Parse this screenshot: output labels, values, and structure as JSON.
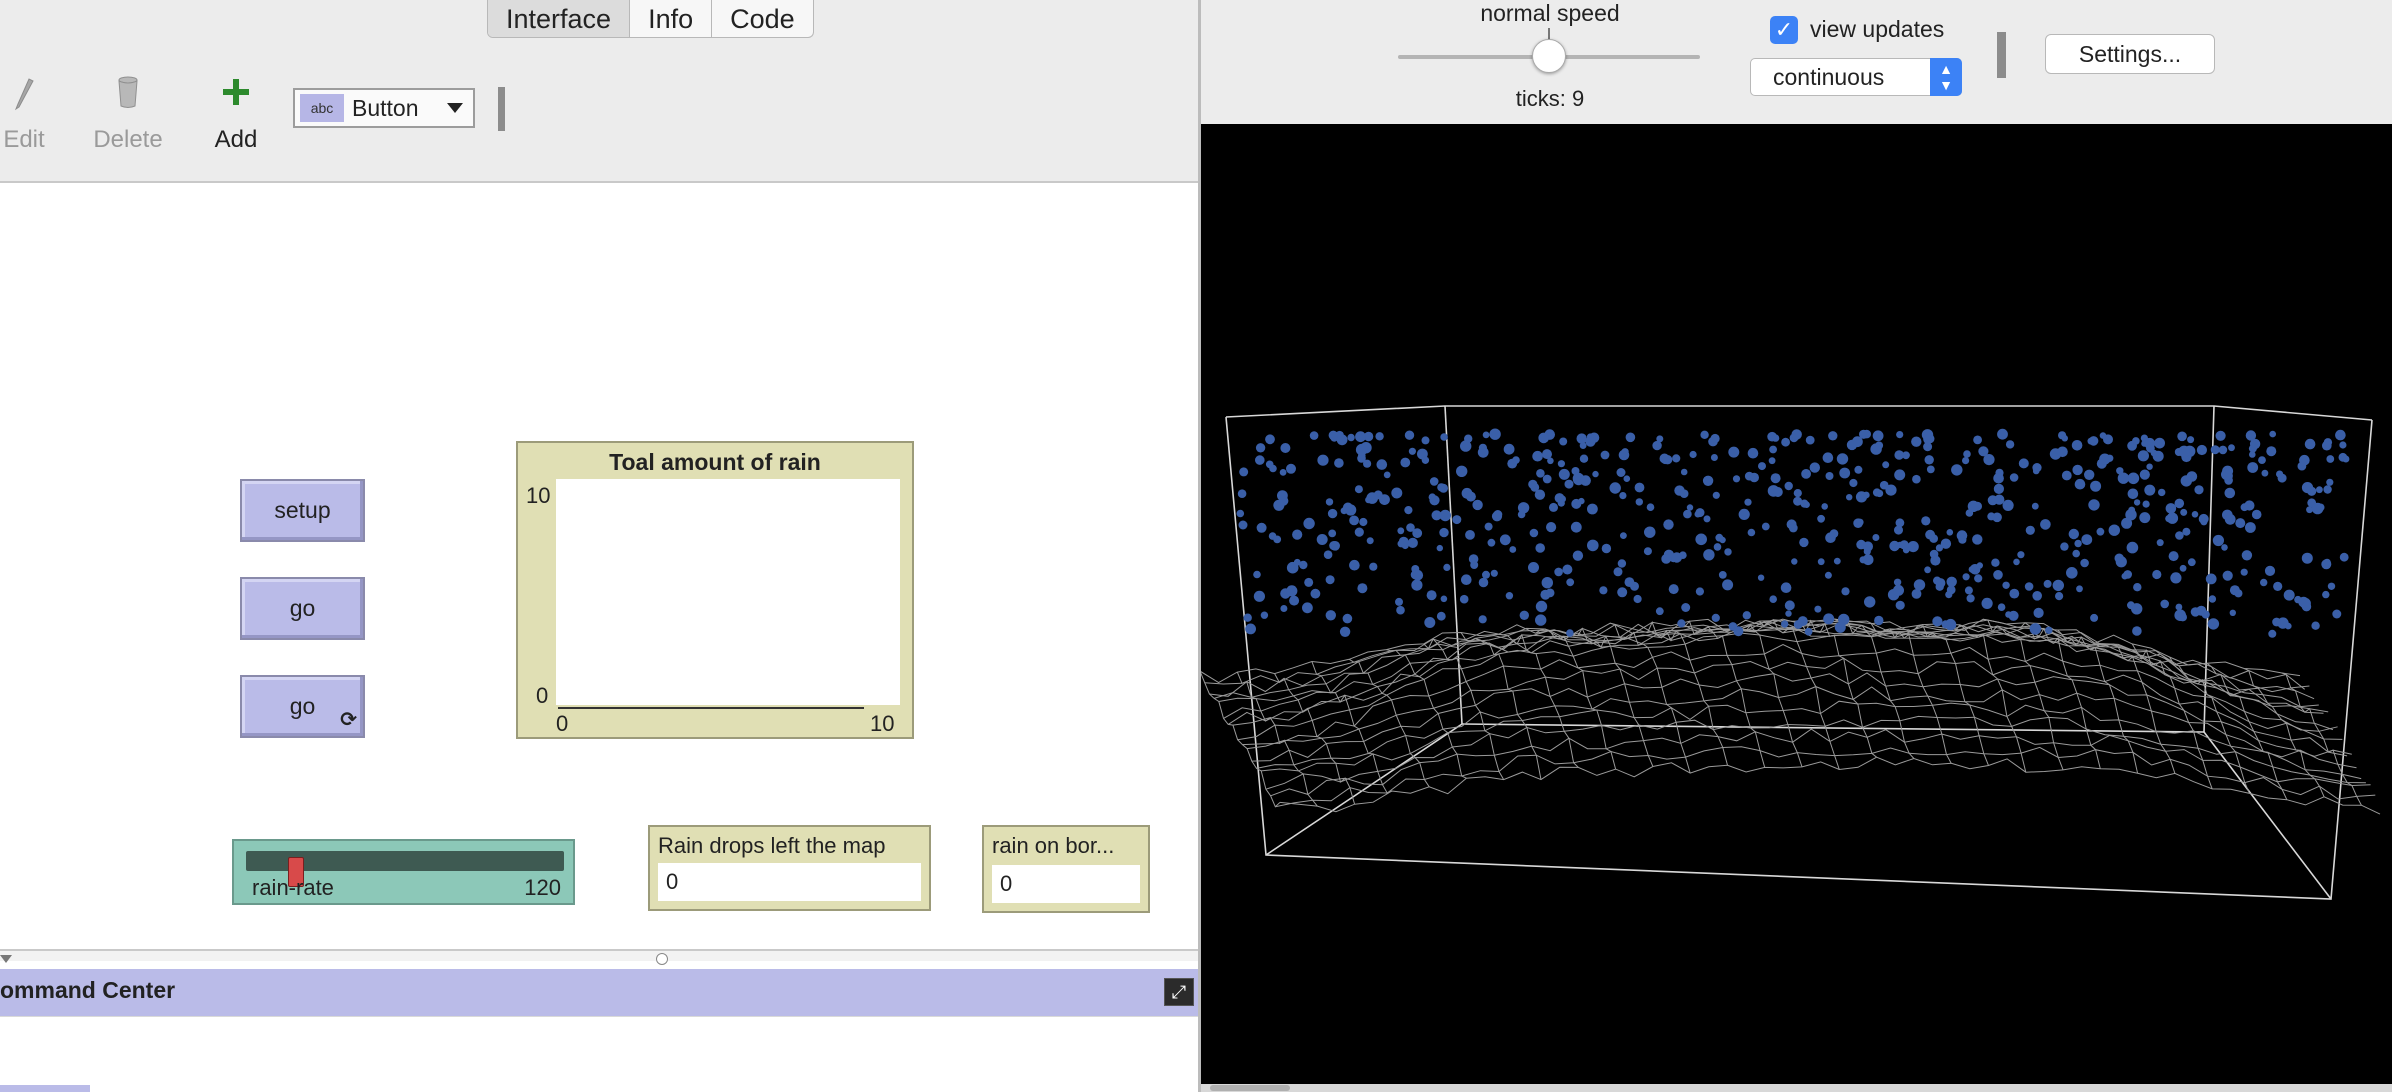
{
  "tabs": [
    {
      "label": "Interface",
      "active": true
    },
    {
      "label": "Info",
      "active": false
    },
    {
      "label": "Code",
      "active": false
    }
  ],
  "toolbar": {
    "edit_label": "Edit",
    "delete_label": "Delete",
    "add_label": "Add",
    "widget_type": "Button",
    "widget_icon_text": "abc"
  },
  "widgets": {
    "setup_label": "setup",
    "go_label": "go",
    "go_forever_label": "go"
  },
  "plot": {
    "title": "Toal amount of rain",
    "y_max": "10",
    "y_min": "0",
    "x_min": "0",
    "x_max": "10"
  },
  "slider": {
    "name": "rain-rate",
    "value": "120",
    "position_fraction": 0.08
  },
  "monitors": {
    "left_map_label": "Rain drops left the map",
    "left_map_value": "0",
    "rain_border_label": "rain on bor...",
    "rain_border_value": "0"
  },
  "command_center": {
    "title": "ommand Center"
  },
  "view_controls": {
    "speed_label": "normal speed",
    "ticks_label": "ticks: 9",
    "view_updates_label": "view updates",
    "view_updates_checked": true,
    "update_mode": "continuous",
    "settings_label": "Settings..."
  },
  "colors": {
    "button_fill": "#babbe8",
    "plot_fill": "#e0dfb4",
    "slider_fill": "#8cc8b8",
    "agent_color": "#3a5fa8",
    "terrain_color": "#9a9a9a",
    "accent": "#3c82f6"
  }
}
